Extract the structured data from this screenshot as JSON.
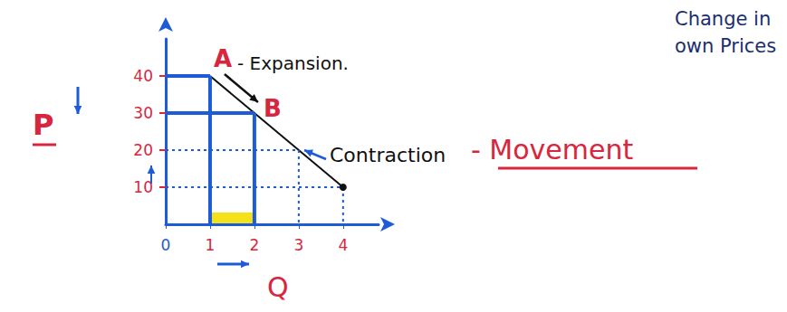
{
  "chart_data": {
    "type": "line",
    "x": [
      1,
      2,
      3,
      4
    ],
    "values": [
      40,
      30,
      20,
      10
    ],
    "color": "#111111",
    "xlim": [
      0,
      4.8
    ],
    "ylim": [
      0,
      50
    ],
    "xticks": [
      0,
      1,
      2,
      3,
      4
    ],
    "yticks": [
      10,
      20,
      30,
      40
    ],
    "x_label": "Q",
    "y_label": "P",
    "point_labels": [
      "A",
      "B"
    ],
    "annotations": [
      "- Expansion.",
      "Contraction",
      "- Movement",
      "Change in own Prices"
    ],
    "grid": false
  }
}
